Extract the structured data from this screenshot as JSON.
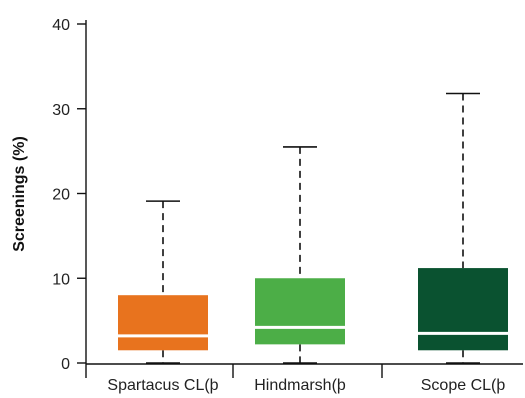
{
  "chart_data": {
    "type": "boxplot",
    "title": "",
    "xlabel": "",
    "ylabel": "Screenings (%)",
    "ylim": [
      0,
      40
    ],
    "yticks": [
      0,
      10,
      20,
      30,
      40
    ],
    "grid": false,
    "categories": [
      "Spartacus CL(þ",
      "Hindmarsh(þ",
      "Scope CL(þ"
    ],
    "series": [
      {
        "category": "Spartacus CL(þ",
        "min": 0,
        "q1": 1.5,
        "median": 3.2,
        "q3": 8.0,
        "max": 19.1,
        "color": "#E8731E"
      },
      {
        "category": "Hindmarsh(þ",
        "min": 0,
        "q1": 2.2,
        "median": 4.2,
        "q3": 10.0,
        "max": 25.5,
        "color": "#4CAE47"
      },
      {
        "category": "Scope CL(þ",
        "min": 0,
        "q1": 1.5,
        "median": 3.5,
        "q3": 11.2,
        "max": 31.8,
        "color": "#0A5230"
      }
    ]
  }
}
